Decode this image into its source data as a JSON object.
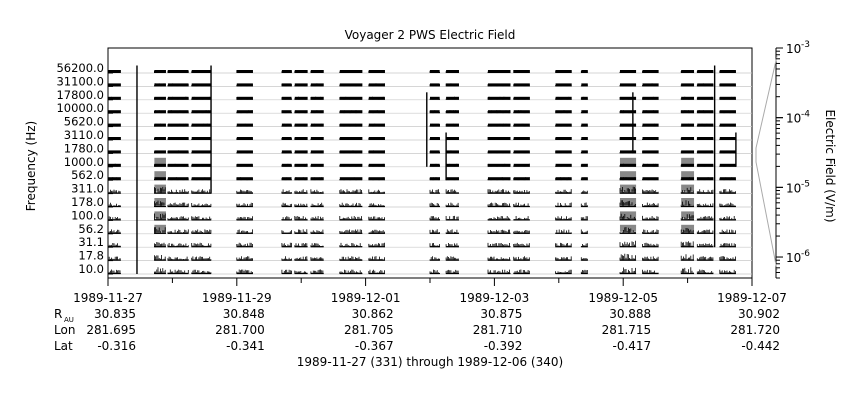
{
  "chart_data": {
    "type": "line",
    "title": "Voyager 2 PWS Electric Field",
    "ylabel": "Frequency (Hz)",
    "colorbar_label": "Electric Field (V/m)",
    "frequency_channels": [
      "10.0",
      "17.8",
      "31.1",
      "56.2",
      "100.0",
      "178.0",
      "311.0",
      "562.0",
      "1000.0",
      "1780.0",
      "3110.0",
      "5620.0",
      "10000.0",
      "17800.0",
      "31100.0",
      "56200.0"
    ],
    "colorbar_ticks": [
      {
        "base": "10",
        "exp": "-3",
        "value": 0.001
      },
      {
        "base": "10",
        "exp": "-4",
        "value": 0.0001
      },
      {
        "base": "10",
        "exp": "-5",
        "value": 1e-05
      },
      {
        "base": "10",
        "exp": "-6",
        "value": 1e-06
      }
    ],
    "colorbar_range": [
      5e-07,
      0.001
    ],
    "colorbar_scale": "log",
    "x_range": [
      "1989-11-27",
      "1989-12-07"
    ],
    "x_ticks": [
      "1989-11-27",
      "1989-11-29",
      "1989-12-01",
      "1989-12-03",
      "1989-12-05",
      "1989-12-07"
    ],
    "ephemeris": {
      "rows": [
        {
          "label": "R",
          "sub": "AU",
          "values": [
            "30.835",
            "30.848",
            "30.862",
            "30.875",
            "30.888",
            "30.902"
          ]
        },
        {
          "label": "Lon",
          "sub": "",
          "values": [
            "281.695",
            "281.700",
            "281.705",
            "281.710",
            "281.715",
            "281.720"
          ]
        },
        {
          "label": "Lat",
          "sub": "",
          "values": [
            "-0.316",
            "-0.341",
            "-0.367",
            "-0.392",
            "-0.417",
            "-0.442"
          ]
        }
      ]
    },
    "xlabel": "1989-11-27 (331) through 1989-12-06 (340)",
    "grid": true,
    "data_segments_days": [
      [
        0.0,
        0.2
      ],
      [
        0.72,
        0.9
      ],
      [
        0.93,
        1.25
      ],
      [
        1.3,
        1.6
      ],
      [
        2.0,
        2.25
      ],
      [
        2.7,
        2.85
      ],
      [
        2.9,
        3.1
      ],
      [
        3.15,
        3.35
      ],
      [
        3.6,
        3.95
      ],
      [
        4.05,
        4.3
      ],
      [
        5.0,
        5.15
      ],
      [
        5.25,
        5.45
      ],
      [
        5.9,
        6.25
      ],
      [
        6.3,
        6.55
      ],
      [
        6.95,
        7.2
      ],
      [
        7.35,
        7.45
      ],
      [
        7.95,
        8.2
      ],
      [
        8.3,
        8.55
      ],
      [
        8.9,
        9.1
      ],
      [
        9.15,
        9.4
      ],
      [
        9.5,
        9.75
      ]
    ],
    "enhanced_segments_days": [
      [
        0.72,
        0.9
      ],
      [
        7.95,
        8.2
      ],
      [
        8.9,
        9.1
      ]
    ]
  }
}
